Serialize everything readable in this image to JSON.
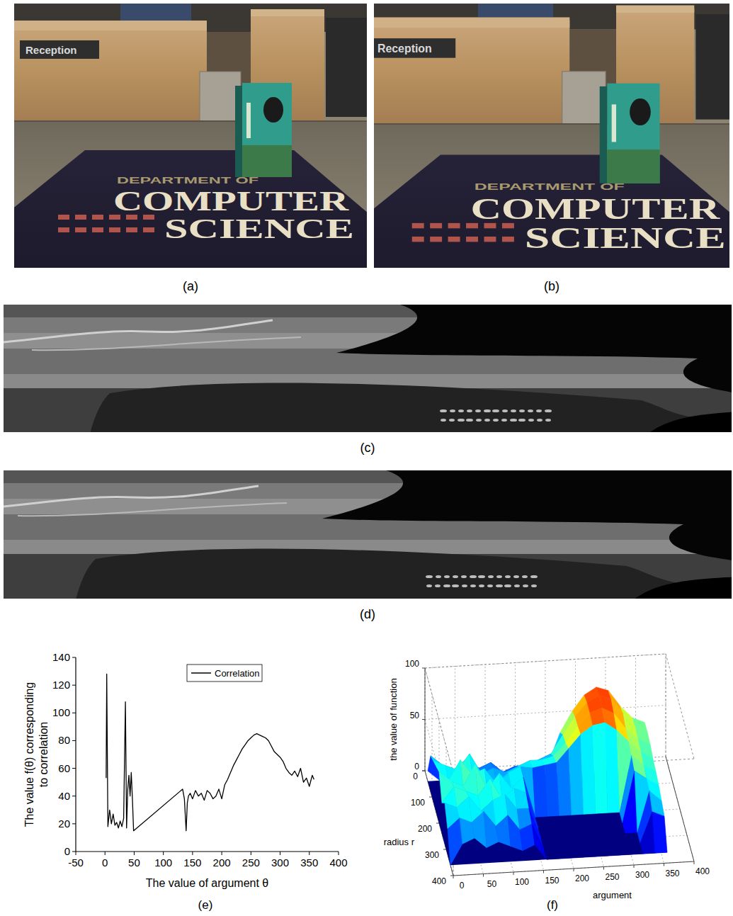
{
  "panels": {
    "a": {
      "label": "(a)",
      "sign": "Reception",
      "carpet_heading": "DEPARTMENT OF",
      "carpet_words": [
        "COMPUTER",
        "SCIENCE"
      ]
    },
    "b": {
      "label": "(b)",
      "sign": "Reception",
      "carpet_heading": "DEPARTMENT OF",
      "carpet_words": [
        "COMPUTER",
        "SCIENCE"
      ]
    },
    "c": {
      "label": "(c)"
    },
    "d": {
      "label": "(d)"
    },
    "e": {
      "label": "(e)"
    },
    "f": {
      "label": "(f)"
    }
  },
  "chart_data": [
    {
      "type": "line",
      "xlabel": "The value of argument θ",
      "ylabel": "The value f(θ) corresponding to correlation",
      "x": [
        2,
        3,
        5,
        8,
        11,
        14,
        17,
        20,
        23,
        26,
        29,
        32,
        35,
        37,
        39,
        41,
        43,
        45,
        47,
        49,
        133,
        136,
        139,
        141,
        143,
        146,
        150,
        155,
        160,
        165,
        170,
        175,
        180,
        185,
        190,
        195,
        200,
        205,
        210,
        215,
        220,
        225,
        230,
        235,
        240,
        245,
        250,
        255,
        260,
        265,
        270,
        275,
        280,
        285,
        290,
        295,
        300,
        305,
        310,
        315,
        320,
        325,
        330,
        335,
        340,
        345,
        350,
        355,
        358
      ],
      "series": [
        {
          "name": "Correlation",
          "color": "#000000",
          "values": [
            53,
            128,
            18,
            30,
            20,
            27,
            19,
            21,
            17,
            22,
            18,
            24,
            108,
            17,
            45,
            55,
            40,
            57,
            38,
            15,
            45,
            38,
            15,
            35,
            40,
            42,
            38,
            44,
            40,
            42,
            37,
            44,
            42,
            38,
            40,
            45,
            38,
            48,
            52,
            57,
            62,
            66,
            70,
            74,
            77,
            80,
            82,
            84,
            85,
            84,
            83,
            82,
            80,
            76,
            72,
            70,
            68,
            65,
            60,
            57,
            55,
            58,
            54,
            60,
            50,
            53,
            47,
            55,
            52
          ]
        }
      ],
      "xlim": [
        -50,
        400
      ],
      "xticks": [
        -50,
        0,
        50,
        100,
        150,
        200,
        250,
        300,
        350,
        400
      ],
      "ylim": [
        0,
        140
      ],
      "yticks": [
        0,
        20,
        40,
        60,
        80,
        100,
        120,
        140
      ],
      "legend": "top-right"
    },
    {
      "type": "surface",
      "xlabel": "argument",
      "ylabel": "radius r",
      "zlabel": "the value of function",
      "x": [
        0,
        20,
        40,
        60,
        80,
        100,
        120,
        140,
        160,
        180,
        200,
        220,
        240,
        260,
        280,
        300,
        320,
        340,
        360
      ],
      "y": [
        40,
        80,
        120,
        160,
        200,
        240,
        280,
        320,
        360
      ],
      "values": [
        [
          10,
          0,
          0,
          0,
          0,
          0,
          0,
          0,
          0,
          0,
          10,
          40,
          60,
          75,
          82,
          78,
          62,
          50,
          45
        ],
        [
          35,
          25,
          20,
          30,
          20,
          25,
          15,
          20,
          20,
          25,
          30,
          48,
          65,
          78,
          84,
          80,
          65,
          52,
          46
        ],
        [
          40,
          35,
          30,
          45,
          25,
          30,
          25,
          30,
          35,
          35,
          38,
          50,
          66,
          78,
          82,
          76,
          60,
          50,
          44
        ],
        [
          45,
          30,
          50,
          35,
          40,
          25,
          35,
          40,
          38,
          40,
          42,
          55,
          68,
          76,
          78,
          70,
          58,
          48,
          40
        ],
        [
          50,
          40,
          35,
          55,
          30,
          45,
          30,
          40,
          0,
          0,
          0,
          0,
          0,
          0,
          0,
          0,
          55,
          45,
          38
        ],
        [
          30,
          45,
          40,
          35,
          50,
          30,
          40,
          35,
          0,
          0,
          0,
          0,
          0,
          0,
          0,
          0,
          50,
          42,
          35
        ],
        [
          40,
          35,
          45,
          30,
          40,
          45,
          30,
          30,
          0,
          0,
          0,
          0,
          0,
          0,
          0,
          0,
          0,
          40,
          30
        ],
        [
          25,
          35,
          30,
          40,
          25,
          35,
          20,
          25,
          0,
          0,
          0,
          0,
          0,
          0,
          0,
          0,
          0,
          30,
          25
        ],
        [
          0,
          20,
          25,
          15,
          20,
          15,
          10,
          15,
          0,
          0,
          0,
          0,
          0,
          0,
          0,
          0,
          0,
          0,
          0
        ]
      ],
      "xlim": [
        0,
        400
      ],
      "xticks": [
        0,
        50,
        100,
        150,
        200,
        250,
        300,
        350,
        400
      ],
      "ylim": [
        0,
        400
      ],
      "yticks": [
        0,
        100,
        200,
        300,
        400
      ],
      "zlim": [
        0,
        100
      ],
      "zticks": [
        0,
        50,
        100
      ],
      "grid": true
    }
  ]
}
